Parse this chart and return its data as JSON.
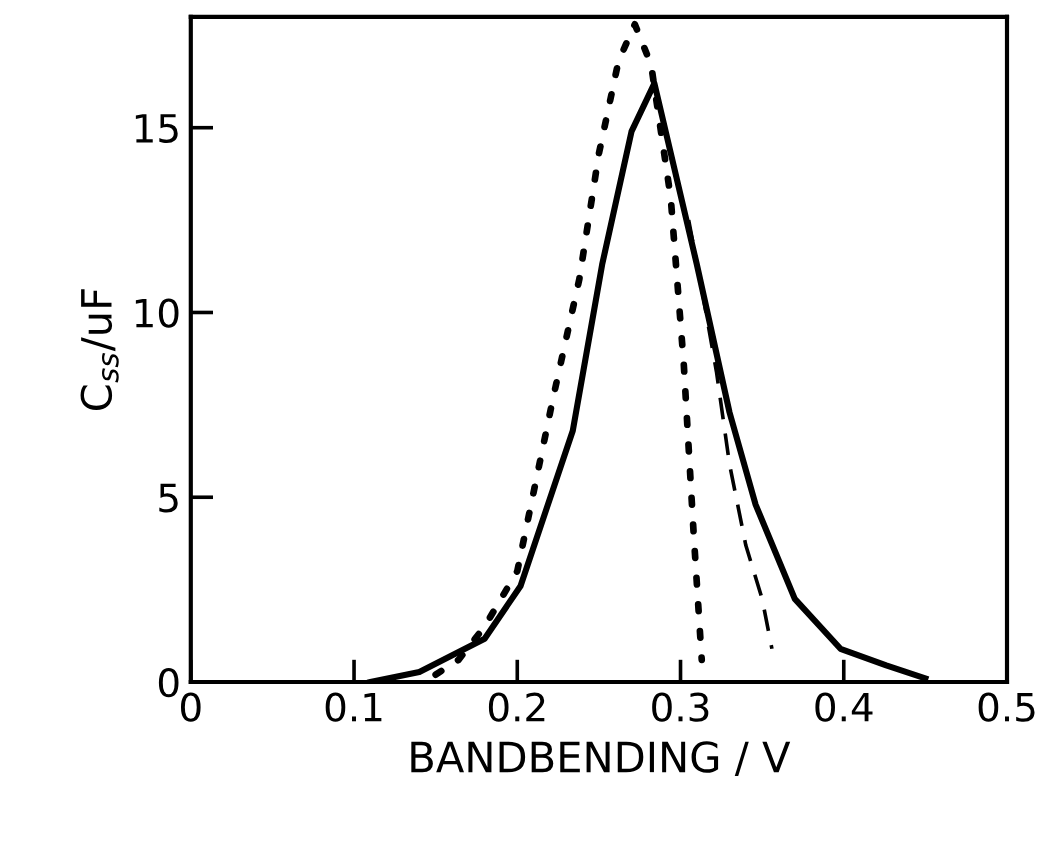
{
  "chart_data": {
    "type": "line",
    "xlabel": "BANDBENDING / V",
    "ylabel": "C$_{ss}$/uF",
    "xlim": [
      0,
      0.5
    ],
    "ylim": [
      0,
      18
    ],
    "xticks": [
      0,
      0.1,
      0.2,
      0.3,
      0.4,
      0.5
    ],
    "yticks": [
      0,
      5,
      10,
      15
    ],
    "grid": false,
    "marker": "none",
    "series": [
      {
        "color": "#000000",
        "line_style": "solid",
        "x": [
          0.11,
          0.14,
          0.18,
          0.202,
          0.234,
          0.252,
          0.27,
          0.284,
          0.31,
          0.33,
          0.346,
          0.37,
          0.398,
          0.426,
          0.45
        ],
        "values": [
          0,
          0.27,
          1.17,
          2.6,
          6.8,
          11.3,
          14.9,
          16.2,
          11.3,
          7.3,
          4.8,
          2.25,
          0.9,
          0.45,
          0.1
        ]
      },
      {
        "color": "#000000",
        "line_style": "dotted",
        "x": [
          0.15,
          0.164,
          0.18,
          0.2,
          0.222,
          0.238,
          0.25,
          0.262,
          0.272,
          0.282,
          0.294,
          0.302,
          0.308,
          0.313
        ],
        "values": [
          0.2,
          0.6,
          1.5,
          3.0,
          7.7,
          10.9,
          14.3,
          16.8,
          17.8,
          16.7,
          13.1,
          8.6,
          4.05,
          0.6
        ]
      },
      {
        "color": "#000000",
        "line_style": "dashed",
        "x": [
          0.305,
          0.314,
          0.322,
          0.33,
          0.34,
          0.35,
          0.356
        ],
        "values": [
          12.5,
          10.4,
          8.4,
          5.9,
          3.7,
          2.25,
          0.9
        ]
      }
    ]
  }
}
